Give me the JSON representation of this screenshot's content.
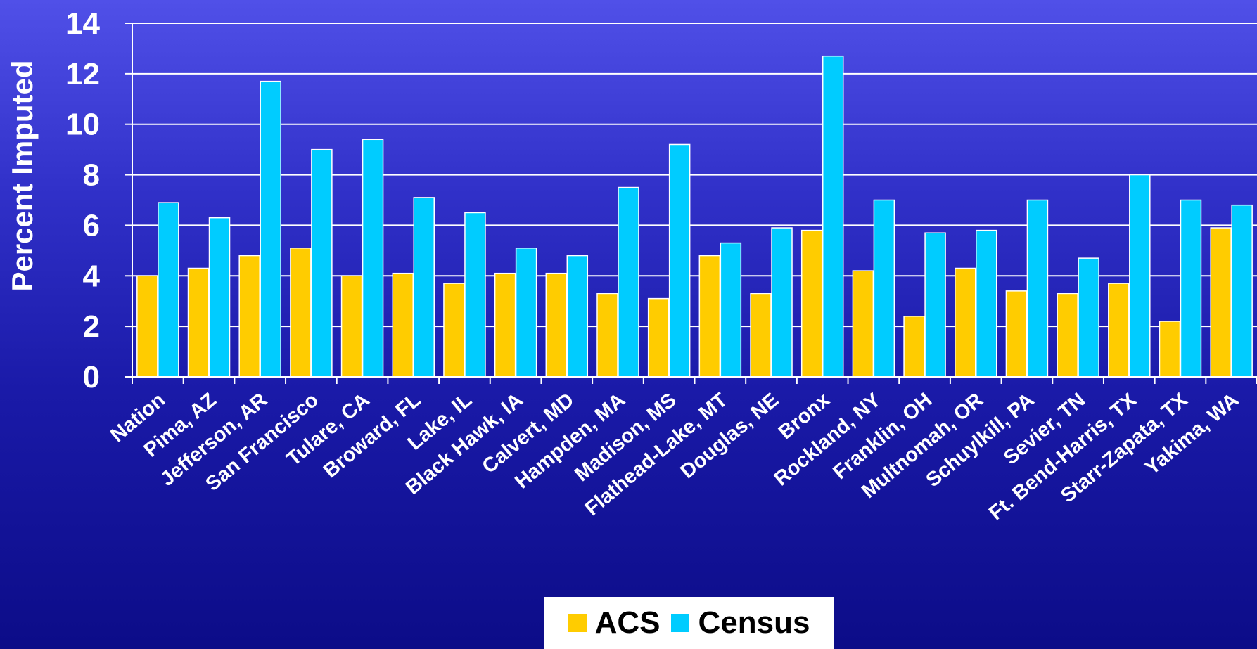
{
  "chart_data": {
    "type": "bar",
    "ylabel": "Percent Imputed",
    "xlabel": "",
    "title": "",
    "ylim": [
      0,
      14
    ],
    "yticks": [
      0,
      2,
      4,
      6,
      8,
      10,
      12,
      14
    ],
    "grid": true,
    "legend_position": "bottom-center",
    "categories": [
      "Nation",
      "Pima, AZ",
      "Jefferson, AR",
      "San Francisco",
      "Tulare, CA",
      "Broward, FL",
      "Lake, IL",
      "Black Hawk, IA",
      "Calvert, MD",
      "Hampden, MA",
      "Madison, MS",
      "Flathead-Lake, MT",
      "Douglas, NE",
      "Bronx",
      "Rockland, NY",
      "Franklin, OH",
      "Multnomah, OR",
      "Schuylkill, PA",
      "Sevier, TN",
      "Ft. Bend-Harris, TX",
      "Starr-Zapata, TX",
      "Yakima, WA"
    ],
    "series": [
      {
        "name": "ACS",
        "color": "#ffcc00",
        "values": [
          4.0,
          4.3,
          4.8,
          5.1,
          4.0,
          4.1,
          3.7,
          4.1,
          4.1,
          3.3,
          3.1,
          4.8,
          3.3,
          5.8,
          4.2,
          2.4,
          4.3,
          3.4,
          3.3,
          3.7,
          2.2,
          5.9
        ]
      },
      {
        "name": "Census",
        "color": "#00ccff",
        "values": [
          6.9,
          6.3,
          11.7,
          9.0,
          9.4,
          7.1,
          6.5,
          5.1,
          4.8,
          7.5,
          9.2,
          5.3,
          5.9,
          12.7,
          7.0,
          5.7,
          5.8,
          7.0,
          4.7,
          8.0,
          7.0,
          6.8
        ]
      }
    ]
  }
}
